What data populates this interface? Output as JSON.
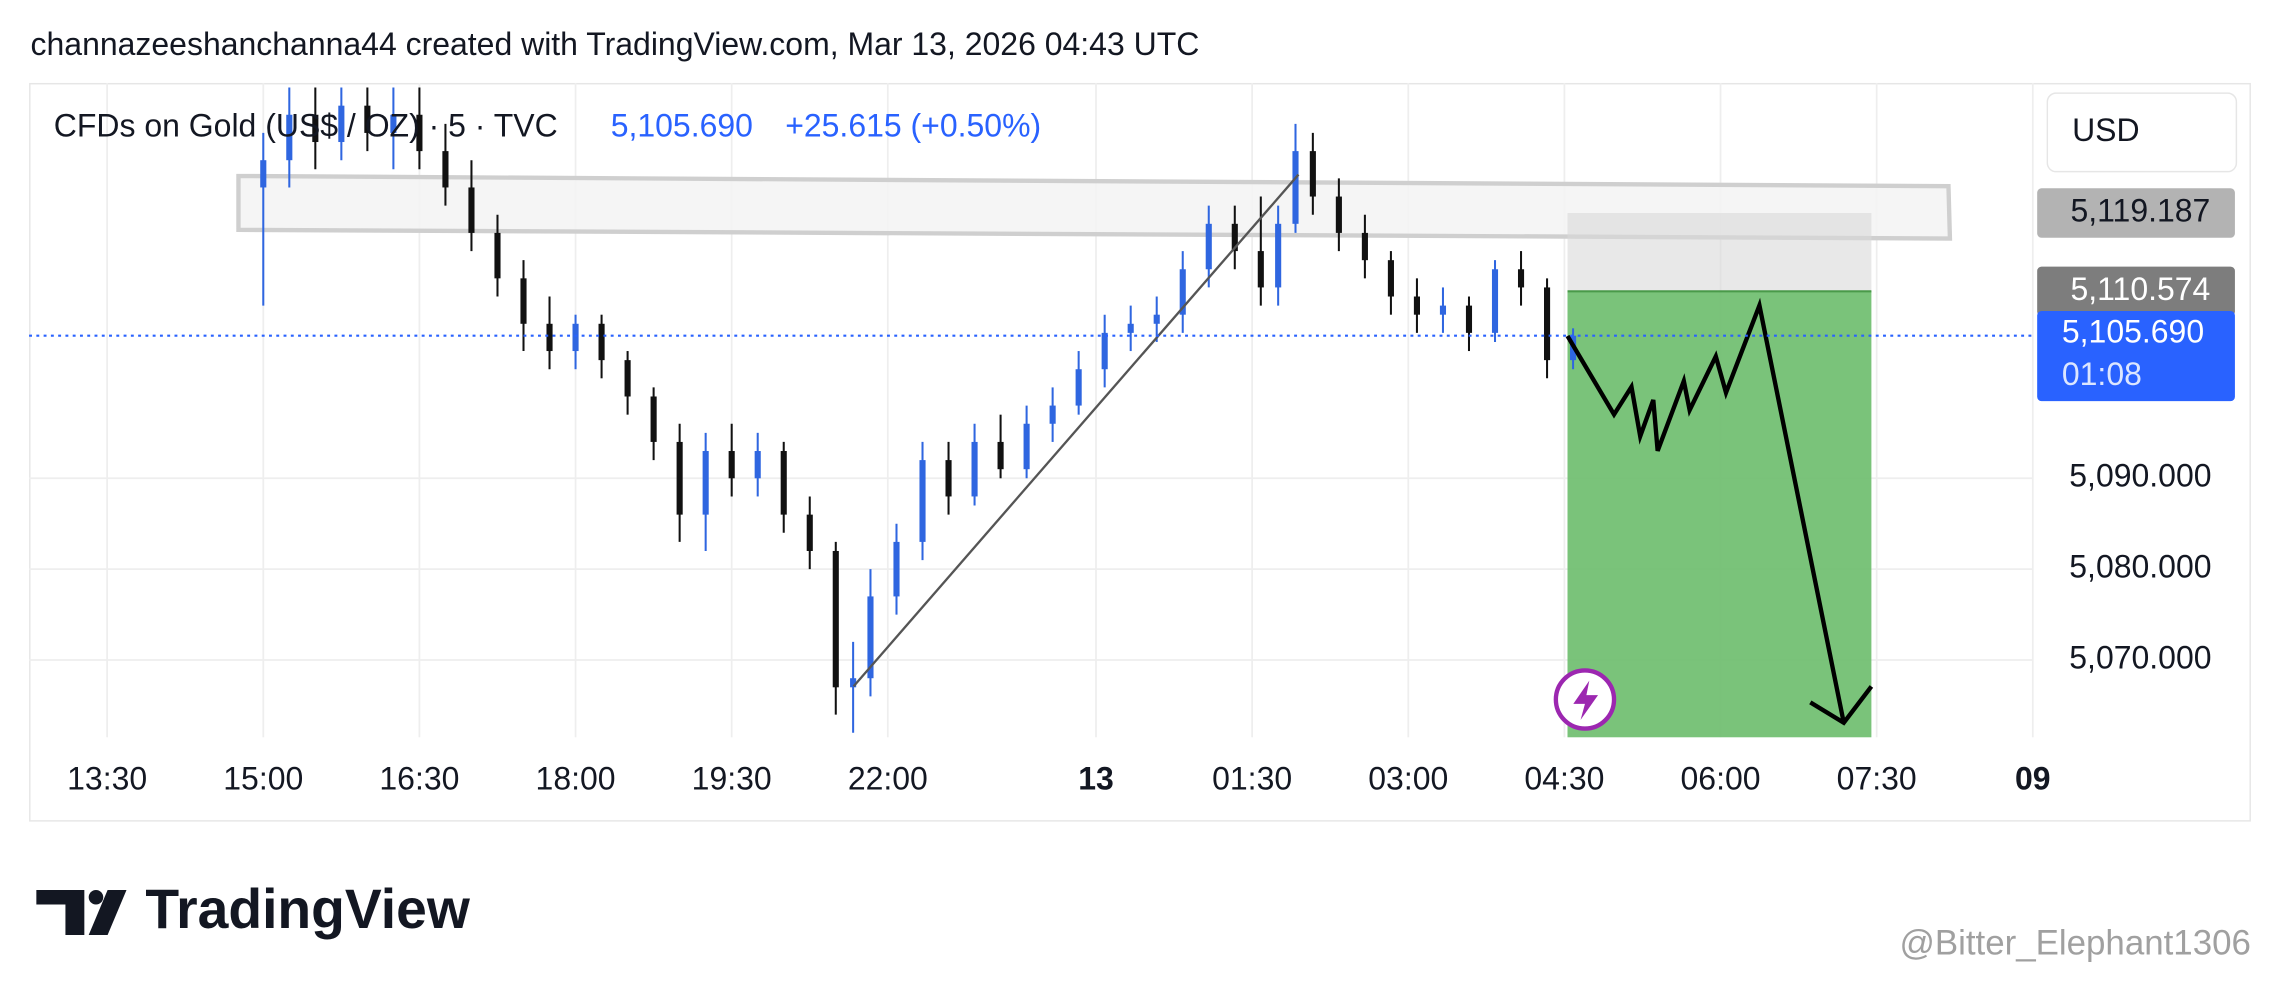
{
  "header": {
    "credit": "channazeeshanchanna44 created with TradingView.com, Mar 13, 2026 04:43 UTC"
  },
  "chart_data": {
    "type": "candlestick",
    "symbol": "CFDs on Gold (US$ / OZ) · 5 · TVC",
    "change": "+25.615 (+0.50%)",
    "currency": "USD",
    "up_color": "#2f66e0",
    "down_color": "#111111",
    "x": [
      18,
      21,
      24,
      27,
      30,
      33,
      36,
      39,
      42,
      45,
      48,
      51,
      54,
      57,
      60,
      63,
      66,
      69,
      72,
      75,
      78,
      81,
      84,
      86,
      88,
      91,
      94,
      97,
      100,
      103,
      106,
      109,
      112,
      115,
      118,
      121,
      124,
      127,
      130,
      133,
      135,
      137,
      139,
      142,
      145,
      148,
      151,
      154,
      157,
      160,
      163,
      166,
      169
    ],
    "open": [
      5122,
      5125,
      5130,
      5127,
      5131,
      5128,
      5130,
      5126,
      5122,
      5117,
      5112,
      5107,
      5104,
      5107,
      5103,
      5099,
      5094,
      5086,
      5093,
      5090,
      5093,
      5086,
      5082,
      5067,
      5068,
      5077,
      5083,
      5092,
      5088,
      5094,
      5091,
      5096,
      5098,
      5102,
      5106,
      5107,
      5108,
      5113,
      5118,
      5115,
      5111,
      5118,
      5126,
      5121,
      5117,
      5114,
      5110,
      5108,
      5109,
      5106,
      5113,
      5111,
      5103
    ],
    "high": [
      5128,
      5133,
      5133,
      5133,
      5133,
      5133,
      5133,
      5129,
      5125,
      5119,
      5114,
      5110,
      5108,
      5108,
      5104,
      5100,
      5096,
      5095,
      5096,
      5095,
      5094,
      5088,
      5083,
      5072,
      5080,
      5085,
      5094,
      5094,
      5096,
      5097,
      5098,
      5100,
      5104,
      5108,
      5109,
      5110,
      5115,
      5120,
      5120,
      5121,
      5120,
      5129,
      5128,
      5123,
      5119,
      5115,
      5112,
      5111,
      5110,
      5114,
      5115,
      5112,
      5106.5
    ],
    "low": [
      5109,
      5122,
      5124,
      5125,
      5126,
      5124,
      5124,
      5120,
      5115,
      5110,
      5104,
      5102,
      5102,
      5101,
      5097,
      5092,
      5083,
      5082,
      5088,
      5088,
      5084,
      5080,
      5064,
      5062,
      5066,
      5075,
      5081,
      5086,
      5087,
      5090,
      5090,
      5094,
      5097,
      5100,
      5104,
      5105,
      5106,
      5111,
      5113,
      5109,
      5109,
      5117,
      5119,
      5115,
      5112,
      5108,
      5106,
      5106,
      5104,
      5105,
      5109,
      5101,
      5102
    ],
    "close": [
      5125,
      5130,
      5127,
      5131,
      5128,
      5130,
      5126,
      5122,
      5117,
      5112,
      5107,
      5104,
      5107,
      5103,
      5099,
      5094,
      5086,
      5093,
      5090,
      5093,
      5086,
      5082,
      5067,
      5068,
      5077,
      5083,
      5092,
      5088,
      5094,
      5091,
      5096,
      5098,
      5102,
      5106,
      5107,
      5108,
      5113,
      5118,
      5115,
      5111,
      5118,
      5126,
      5121,
      5117,
      5114,
      5110,
      5108,
      5109,
      5106,
      5113,
      5111,
      5103,
      5105.69
    ],
    "xlim": [
      -9,
      222
    ],
    "xticks": [
      {
        "value": 0,
        "label": "13:30"
      },
      {
        "value": 18,
        "label": "15:00"
      },
      {
        "value": 36,
        "label": "16:30"
      },
      {
        "value": 54,
        "label": "18:00"
      },
      {
        "value": 72,
        "label": "19:30"
      },
      {
        "value": 90,
        "label": "22:00"
      },
      {
        "value": 114,
        "label": "13"
      },
      {
        "value": 132,
        "label": "01:30"
      },
      {
        "value": 150,
        "label": "03:00"
      },
      {
        "value": 168,
        "label": "04:30"
      },
      {
        "value": 186,
        "label": "06:00"
      },
      {
        "value": 204,
        "label": "07:30"
      },
      {
        "value": 222,
        "label": "09"
      }
    ],
    "ylim": [
      5061.5,
      5133.5
    ],
    "yticks": [
      {
        "value": 5070,
        "label": "5,070.000"
      },
      {
        "value": 5080,
        "label": "5,080.000"
      },
      {
        "value": 5090,
        "label": "5,090.000"
      }
    ],
    "grid": true,
    "price_markers": [
      {
        "value": 5119.187,
        "label": "5,119.187",
        "color": "#b3b3b3"
      },
      {
        "value": 5110.574,
        "label": "5,110.574",
        "color": "#7d7d7d"
      }
    ],
    "last_price": {
      "value": 5105.69,
      "label": "5,105.690",
      "countdown": "01:08",
      "color": "#2962ff"
    }
  },
  "footer": {
    "logo": "TradingView",
    "watermark": "@Bitter_Elephant1306"
  }
}
